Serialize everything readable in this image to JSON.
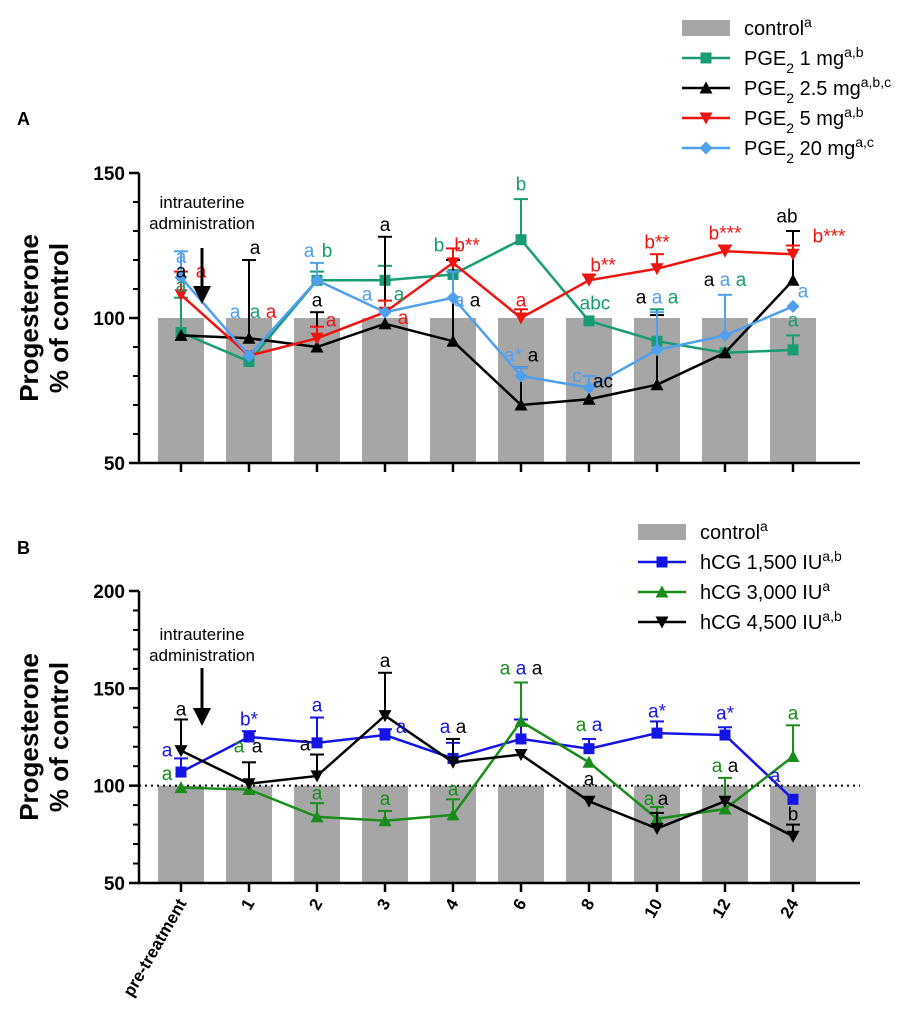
{
  "chart_data": [
    {
      "panel": "A",
      "type": "line",
      "ylabel": [
        "Progesterone",
        "% of control"
      ],
      "ylim": [
        50,
        150
      ],
      "yticks": [
        50,
        100,
        150
      ],
      "categories": [
        "pre-treatment",
        "1",
        "2",
        "3",
        "4",
        "6",
        "8",
        "10",
        "12",
        "24"
      ],
      "control": {
        "name": "control",
        "sup": "a",
        "color": "#a6a6a6",
        "value": 100
      },
      "arrow_label": [
        "intrauterine",
        "administration"
      ],
      "legend_placement": "top-right",
      "series": [
        {
          "name": "PGE",
          "sub": "2",
          "dose": " 1 mg",
          "sup": "a,b",
          "color": "#179c73",
          "marker": "square",
          "values": [
            95,
            85,
            113,
            113,
            115,
            127,
            99,
            92,
            88,
            89
          ],
          "err": [
            12,
            0,
            3,
            5,
            5,
            14,
            0,
            11,
            0,
            5
          ]
        },
        {
          "name": "PGE",
          "sub": "2",
          "dose": " 2.5 mg",
          "sup": "a,b,c",
          "color": "#000000",
          "marker": "triangle-up",
          "values": [
            94,
            93,
            90,
            98,
            92,
            70,
            72,
            77,
            88,
            113
          ],
          "err": [
            0,
            27,
            12,
            30,
            28,
            13,
            8,
            24,
            0,
            17
          ]
        },
        {
          "name": "PGE",
          "sub": "2",
          "dose": " 5 mg",
          "sup": "a,b",
          "color": "#f0140f",
          "marker": "triangle-down",
          "values": [
            108,
            87,
            93,
            102,
            119,
            100,
            113,
            117,
            123,
            122
          ],
          "err": [
            8,
            0,
            4,
            4,
            5,
            3,
            2,
            5,
            2,
            3
          ]
        },
        {
          "name": "PGE",
          "sub": "2",
          "dose": " 20 mg",
          "sup": "a,c",
          "color": "#50a0f0",
          "marker": "diamond",
          "values": [
            114,
            87,
            113,
            102,
            107,
            80,
            76,
            89,
            94,
            104
          ],
          "err": [
            9,
            0,
            6,
            0,
            9,
            3,
            4,
            13,
            14,
            0
          ]
        }
      ],
      "annotations": [
        {
          "text": "a",
          "color": "#50a0f0",
          "cat": 0,
          "y": 119
        },
        {
          "text": "a",
          "color": "#000000",
          "cat": 0,
          "y": 114
        },
        {
          "text": "a",
          "color": "#f0140f",
          "cat": 0,
          "dx": 20,
          "y": 114
        },
        {
          "text": "a",
          "color": "#179c73",
          "cat": 0,
          "y": 109
        },
        {
          "text": "a",
          "color": "#50a0f0",
          "cat": 1,
          "dx": -14,
          "y": 100
        },
        {
          "text": "a",
          "color": "#179c73",
          "cat": 1,
          "dx": 6,
          "y": 100
        },
        {
          "text": "a",
          "color": "#f0140f",
          "cat": 1,
          "dx": 22,
          "y": 100
        },
        {
          "text": "a",
          "color": "#000000",
          "cat": 1,
          "dx": 6,
          "y": 122
        },
        {
          "text": "a",
          "color": "#50a0f0",
          "cat": 2,
          "dx": -8,
          "y": 121
        },
        {
          "text": "b",
          "color": "#179c73",
          "cat": 2,
          "dx": 10,
          "y": 121
        },
        {
          "text": "a",
          "color": "#000000",
          "cat": 2,
          "y": 104
        },
        {
          "text": "a",
          "color": "#f0140f",
          "cat": 2,
          "dx": 14,
          "y": 97
        },
        {
          "text": "a",
          "color": "#000000",
          "cat": 3,
          "y": 130
        },
        {
          "text": "a",
          "color": "#50a0f0",
          "cat": 3,
          "dx": -18,
          "y": 106
        },
        {
          "text": "a",
          "color": "#179c73",
          "cat": 3,
          "dx": 14,
          "y": 106
        },
        {
          "text": "a",
          "color": "#f0140f",
          "cat": 3,
          "dx": 18,
          "y": 98
        },
        {
          "text": "b",
          "color": "#179c73",
          "cat": 4,
          "dx": -14,
          "y": 123
        },
        {
          "text": "b**",
          "color": "#f0140f",
          "cat": 4,
          "dx": 14,
          "y": 123
        },
        {
          "text": "a",
          "color": "#50a0f0",
          "cat": 4,
          "dx": 6,
          "y": 104
        },
        {
          "text": "a",
          "color": "#000000",
          "cat": 4,
          "dx": 22,
          "y": 104
        },
        {
          "text": "b",
          "color": "#179c73",
          "cat": 5,
          "y": 144
        },
        {
          "text": "a",
          "color": "#f0140f",
          "cat": 5,
          "y": 104
        },
        {
          "text": "a*",
          "color": "#50a0f0",
          "cat": 5,
          "dx": -8,
          "y": 85
        },
        {
          "text": "a",
          "color": "#000000",
          "cat": 5,
          "dx": 12,
          "y": 85
        },
        {
          "text": "b**",
          "color": "#f0140f",
          "cat": 6,
          "dx": 14,
          "y": 116
        },
        {
          "text": "abc",
          "color": "#179c73",
          "cat": 6,
          "dx": 6,
          "y": 103
        },
        {
          "text": "c",
          "color": "#50a0f0",
          "cat": 6,
          "dx": -12,
          "y": 78
        },
        {
          "text": "ac",
          "color": "#000000",
          "cat": 6,
          "dx": 14,
          "y": 76
        },
        {
          "text": "b**",
          "color": "#f0140f",
          "cat": 7,
          "y": 124
        },
        {
          "text": "a",
          "color": "#000000",
          "cat": 7,
          "dx": -16,
          "y": 105
        },
        {
          "text": "a",
          "color": "#50a0f0",
          "cat": 7,
          "dx": 0,
          "y": 105
        },
        {
          "text": "a",
          "color": "#179c73",
          "cat": 7,
          "dx": 16,
          "y": 105
        },
        {
          "text": "b***",
          "color": "#f0140f",
          "cat": 8,
          "y": 127
        },
        {
          "text": "a",
          "color": "#000000",
          "cat": 8,
          "dx": -16,
          "y": 111
        },
        {
          "text": "a",
          "color": "#50a0f0",
          "cat": 8,
          "dx": 0,
          "y": 111
        },
        {
          "text": "a",
          "color": "#179c73",
          "cat": 8,
          "dx": 16,
          "y": 111
        },
        {
          "text": "ab",
          "color": "#000000",
          "cat": 9,
          "dx": -6,
          "y": 133
        },
        {
          "text": "b***",
          "color": "#f0140f",
          "cat": 9,
          "dx": 36,
          "y": 126
        },
        {
          "text": "a",
          "color": "#50a0f0",
          "cat": 9,
          "dx": 10,
          "y": 107
        },
        {
          "text": "a",
          "color": "#179c73",
          "cat": 9,
          "dx": 0,
          "y": 97
        }
      ]
    },
    {
      "panel": "B",
      "type": "line",
      "ylabel": [
        "Progesterone",
        "% of control"
      ],
      "ylim": [
        50,
        200
      ],
      "yticks": [
        50,
        100,
        150,
        200
      ],
      "categories": [
        "pre-treatment",
        "1",
        "2",
        "3",
        "4",
        "6",
        "8",
        "10",
        "12",
        "24"
      ],
      "control": {
        "name": "control",
        "sup": "a",
        "color": "#a6a6a6",
        "value": 100
      },
      "reference_line": 100,
      "arrow_label": [
        "intrauterine",
        "administration"
      ],
      "legend_placement": "top-right",
      "series": [
        {
          "name": "hCG 1,500 IU",
          "sup": "a,b",
          "color": "#1414e6",
          "marker": "square",
          "values": [
            107,
            125,
            122,
            126,
            114,
            124,
            119,
            127,
            126,
            93
          ],
          "err": [
            7,
            3,
            13,
            3,
            8,
            10,
            5,
            6,
            4,
            0
          ]
        },
        {
          "name": "hCG 3,000 IU",
          "sup": "a",
          "color": "#198c19",
          "marker": "triangle-up",
          "values": [
            99,
            98,
            84,
            82,
            85,
            133,
            112,
            83,
            88,
            115
          ],
          "err": [
            0,
            0,
            7,
            5,
            8,
            20,
            0,
            6,
            16,
            16
          ]
        },
        {
          "name": "hCG 4,500 IU",
          "sup": "a,b",
          "color": "#000000",
          "marker": "triangle-down",
          "values": [
            118,
            101,
            105,
            136,
            112,
            116,
            92,
            78,
            92,
            74
          ],
          "err": [
            16,
            11,
            11,
            22,
            12,
            0,
            0,
            8,
            0,
            6
          ]
        }
      ],
      "annotations": [
        {
          "text": "a",
          "color": "#000000",
          "cat": 0,
          "y": 136
        },
        {
          "text": "a",
          "color": "#1414e6",
          "cat": 0,
          "dx": -14,
          "y": 115
        },
        {
          "text": "a",
          "color": "#198c19",
          "cat": 0,
          "dx": -14,
          "y": 103
        },
        {
          "text": "b*",
          "color": "#1414e6",
          "cat": 1,
          "y": 131
        },
        {
          "text": "a",
          "color": "#198c19",
          "cat": 1,
          "dx": -10,
          "y": 117
        },
        {
          "text": "a",
          "color": "#000000",
          "cat": 1,
          "dx": 8,
          "y": 117
        },
        {
          "text": "a",
          "color": "#1414e6",
          "cat": 2,
          "y": 138
        },
        {
          "text": "a",
          "color": "#000000",
          "cat": 2,
          "dx": -12,
          "y": 118
        },
        {
          "text": "a",
          "color": "#198c19",
          "cat": 2,
          "y": 93
        },
        {
          "text": "a",
          "color": "#000000",
          "cat": 3,
          "y": 161
        },
        {
          "text": "a",
          "color": "#1414e6",
          "cat": 3,
          "dx": 16,
          "y": 127
        },
        {
          "text": "a",
          "color": "#198c19",
          "cat": 3,
          "y": 90
        },
        {
          "text": "a",
          "color": "#1414e6",
          "cat": 4,
          "dx": -8,
          "y": 127
        },
        {
          "text": "a",
          "color": "#000000",
          "cat": 4,
          "dx": 8,
          "y": 127
        },
        {
          "text": "a",
          "color": "#198c19",
          "cat": 4,
          "y": 95
        },
        {
          "text": "a",
          "color": "#198c19",
          "cat": 5,
          "dx": -16,
          "y": 157
        },
        {
          "text": "a",
          "color": "#1414e6",
          "cat": 5,
          "dx": 0,
          "y": 157
        },
        {
          "text": "a",
          "color": "#000000",
          "cat": 5,
          "dx": 16,
          "y": 157
        },
        {
          "text": "a",
          "color": "#198c19",
          "cat": 6,
          "dx": -8,
          "y": 128
        },
        {
          "text": "a",
          "color": "#1414e6",
          "cat": 6,
          "dx": 8,
          "y": 128
        },
        {
          "text": "a",
          "color": "#000000",
          "cat": 6,
          "y": 100
        },
        {
          "text": "a*",
          "color": "#1414e6",
          "cat": 7,
          "y": 135
        },
        {
          "text": "a",
          "color": "#198c19",
          "cat": 7,
          "dx": -8,
          "y": 90
        },
        {
          "text": "a",
          "color": "#000000",
          "cat": 7,
          "dx": 6,
          "y": 90
        },
        {
          "text": "a*",
          "color": "#1414e6",
          "cat": 8,
          "y": 134
        },
        {
          "text": "a",
          "color": "#198c19",
          "cat": 8,
          "dx": -8,
          "y": 107
        },
        {
          "text": "a",
          "color": "#000000",
          "cat": 8,
          "dx": 8,
          "y": 107
        },
        {
          "text": "a",
          "color": "#198c19",
          "cat": 9,
          "y": 134
        },
        {
          "text": "a",
          "color": "#1414e6",
          "cat": 9,
          "dx": -18,
          "y": 102
        },
        {
          "text": "b",
          "color": "#000000",
          "cat": 9,
          "y": 82
        }
      ]
    }
  ]
}
